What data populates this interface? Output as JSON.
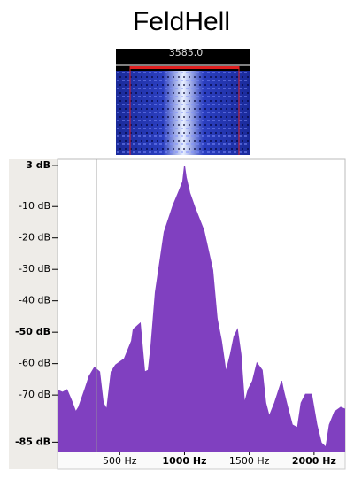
{
  "title": "FeldHell",
  "waterfall_label": "3585.0",
  "chart_data": {
    "type": "area",
    "color": "#8040c0",
    "x": [
      25,
      59,
      93,
      127,
      161,
      182,
      230,
      264,
      305,
      345,
      373,
      400,
      434,
      468,
      536,
      591,
      604,
      659,
      693,
      720,
      741,
      775,
      843,
      911,
      959,
      986,
      1000,
      1013,
      1041,
      1082,
      1150,
      1218,
      1252,
      1286,
      1320,
      1354,
      1382,
      1409,
      1436,
      1463,
      1491,
      1525,
      1559,
      1600,
      1627,
      1654,
      1695,
      1750,
      1763,
      1797,
      1832,
      1872,
      1900,
      1934,
      1981,
      2022,
      2056,
      2091,
      2118,
      2159,
      2206,
      2240
    ],
    "values": [
      -68.5,
      -69.1,
      -68.3,
      -71.6,
      -75.3,
      -73.9,
      -68.3,
      -64.0,
      -61.2,
      -62.6,
      -72.5,
      -74.5,
      -62.6,
      -60.4,
      -58.4,
      -52.8,
      -49.1,
      -47.1,
      -62.6,
      -62.1,
      -54.2,
      -37.3,
      -18.1,
      -9.7,
      -4.9,
      -2.1,
      3.0,
      -0.7,
      -5.7,
      -10.5,
      -17.6,
      -30.2,
      -45.7,
      -52.8,
      -62.6,
      -57.0,
      -51.4,
      -49.1,
      -57.0,
      -72.5,
      -68.3,
      -65.5,
      -59.8,
      -62.1,
      -72.5,
      -76.7,
      -72.5,
      -65.5,
      -68.3,
      -73.9,
      -79.5,
      -80.4,
      -72.5,
      -69.7,
      -69.7,
      -79.5,
      -85.2,
      -86.6,
      -79.5,
      -75.3,
      -73.9,
      -74.5
    ],
    "cursor_x": 320,
    "xlim": [
      20,
      2240
    ],
    "ylim": [
      -88,
      5
    ],
    "xticks": [
      {
        "value": 500,
        "label": "500 Hz"
      },
      {
        "value": 1000,
        "label": "1000 Hz"
      },
      {
        "value": 1500,
        "label": "1500 Hz"
      },
      {
        "value": 2000,
        "label": "2000 Hz"
      }
    ],
    "yticks": [
      {
        "value": 3,
        "label": "3 dB"
      },
      {
        "value": -10,
        "label": "-10 dB"
      },
      {
        "value": -20,
        "label": "-20 dB"
      },
      {
        "value": -30,
        "label": "-30 dB"
      },
      {
        "value": -40,
        "label": "-40 dB"
      },
      {
        "value": -50,
        "label": "-50 dB"
      },
      {
        "value": -60,
        "label": "-60 dB"
      },
      {
        "value": -70,
        "label": "-70 dB"
      },
      {
        "value": -85,
        "label": "-85 dB"
      }
    ]
  }
}
